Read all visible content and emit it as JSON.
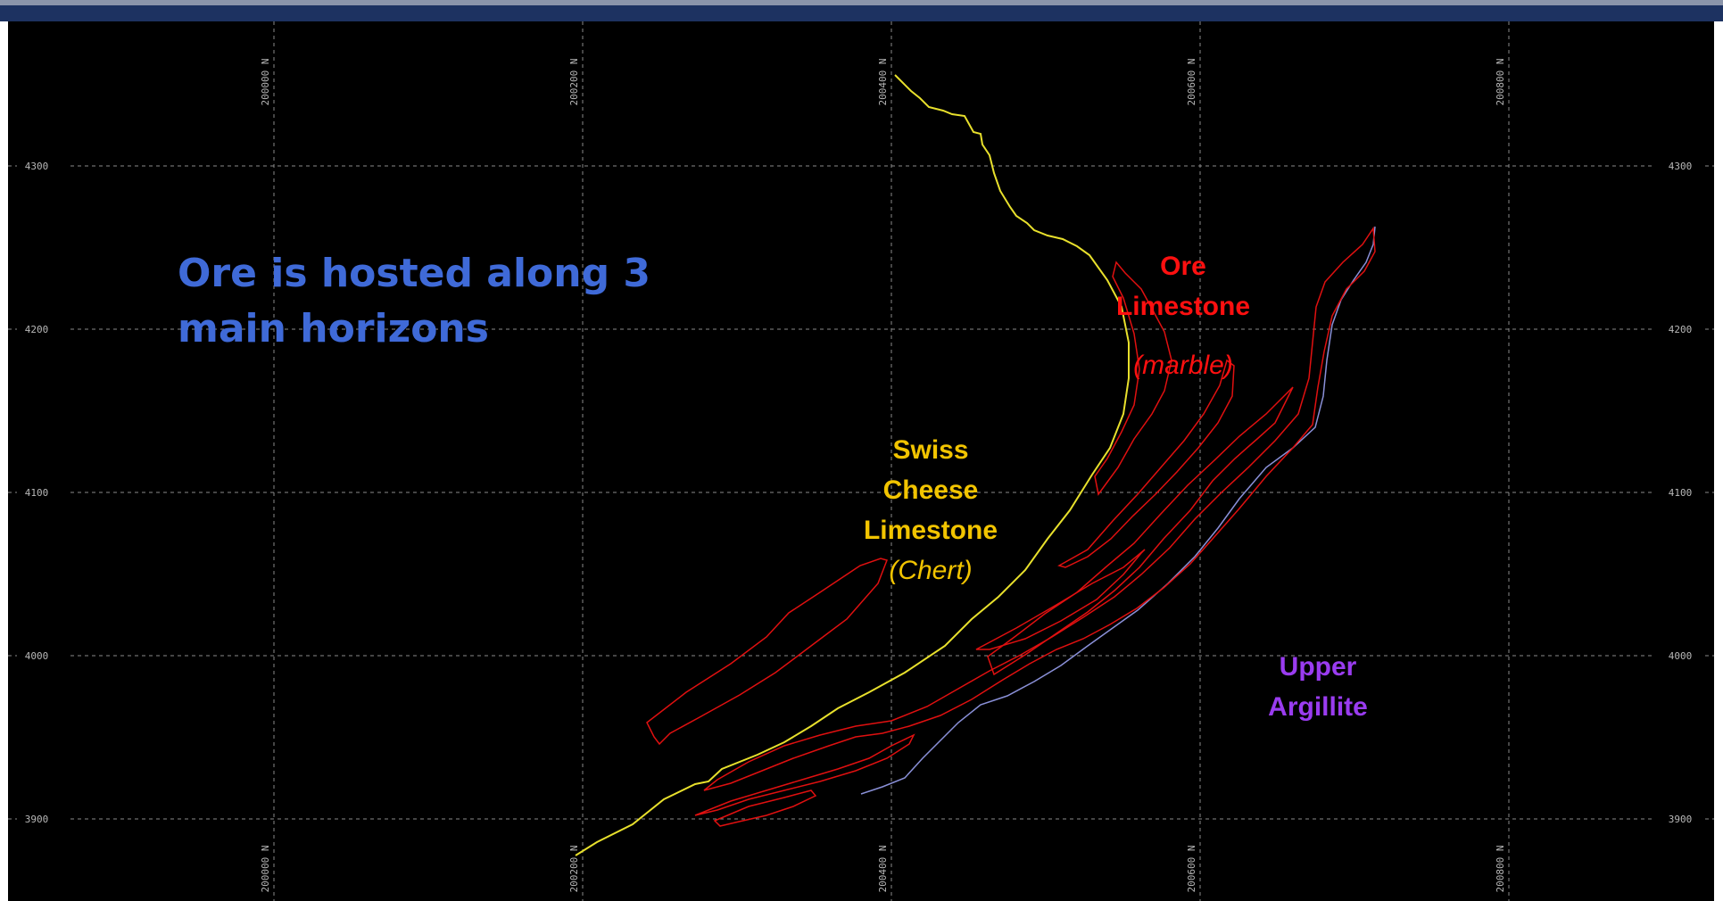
{
  "colors": {
    "grid": "#8a8a8a",
    "tick_text": "#b8b8b8",
    "background": "#000000",
    "title": "#3f6ad8",
    "swiss_cheese": "#f2c400",
    "ore_limestone": "#ff1010",
    "upper_argillite": "#9a3cf0",
    "ore_outline": "#e01010",
    "yellow_contact": "#e8e02c",
    "argillite_contact": "#8a90d8"
  },
  "title": {
    "text": "Ore is hosted along 3\nmain horizons"
  },
  "grid": {
    "easting_labels": [
      "200000 N",
      "200200 N",
      "200400 N",
      "200600 N",
      "200800 N"
    ],
    "elevation_labels": [
      "4300",
      "4200",
      "4100",
      "4000",
      "3900"
    ]
  },
  "units": {
    "swiss_cheese": {
      "name": "Swiss\nCheese\nLimestone",
      "note": "(Chert)"
    },
    "ore_limestone": {
      "name": "Ore\nLimestone",
      "note": "(marble)"
    },
    "upper_argillite": {
      "name": "Upper\nArgillite"
    }
  }
}
